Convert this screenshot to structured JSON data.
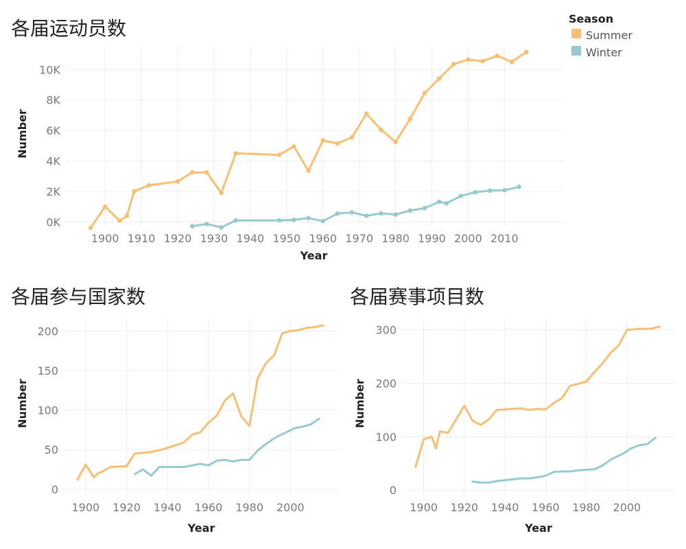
{
  "colors": {
    "summer": "#f8bf72",
    "winter": "#97cbcb"
  },
  "legend": {
    "title": "Season",
    "entries": [
      {
        "label": "Summer",
        "color": "#f8bf72"
      },
      {
        "label": "Winter",
        "color": "#97cbcb"
      }
    ]
  },
  "chart_data": [
    {
      "id": "athletes",
      "type": "line",
      "title": "各届运动员数",
      "xlabel": "Year",
      "ylabel": "Number",
      "xlim": [
        1889,
        2026
      ],
      "ylim": [
        -300,
        11500
      ],
      "xticks": [
        1900,
        1910,
        1920,
        1930,
        1940,
        1950,
        1960,
        1970,
        1980,
        1990,
        2000,
        2010
      ],
      "xtick_labels": [
        "1900",
        "1910",
        "1920",
        "1930",
        "1940",
        "1950",
        "1960",
        "1970",
        "1980",
        "1990",
        "2000",
        "2010"
      ],
      "yticks": [
        0,
        2000,
        4000,
        6000,
        8000,
        10000
      ],
      "ytick_labels": [
        "0K",
        "2K",
        "4K",
        "6K",
        "8K",
        "10K"
      ],
      "markers": true,
      "series": [
        {
          "name": "Summer",
          "x": [
            1896,
            1900,
            1904,
            1906,
            1908,
            1912,
            1920,
            1924,
            1928,
            1932,
            1936,
            1948,
            1952,
            1956,
            1960,
            1964,
            1968,
            1972,
            1976,
            1980,
            1984,
            1988,
            1992,
            1996,
            2000,
            2004,
            2008,
            2012,
            2016
          ],
          "values": [
            -400,
            1000,
            80,
            400,
            2000,
            2400,
            2650,
            3250,
            3250,
            1900,
            4500,
            4400,
            4950,
            3350,
            5350,
            5150,
            5550,
            7100,
            6050,
            5250,
            6750,
            8450,
            9400,
            10350,
            10650,
            10550,
            10900,
            10500,
            11150
          ]
        },
        {
          "name": "Winter",
          "x": [
            1924,
            1928,
            1932,
            1936,
            1948,
            1952,
            1956,
            1960,
            1964,
            1968,
            1972,
            1976,
            1980,
            1984,
            1988,
            1992,
            1994,
            1998,
            2002,
            2006,
            2010,
            2014
          ],
          "values": [
            -280,
            -140,
            -360,
            100,
            100,
            130,
            250,
            50,
            540,
            620,
            400,
            560,
            480,
            740,
            900,
            1320,
            1220,
            1700,
            1950,
            2050,
            2080,
            2300
          ]
        }
      ]
    },
    {
      "id": "countries",
      "type": "line",
      "title": "各届参与国家数",
      "xlabel": "Year",
      "ylabel": "Number",
      "xlim": [
        1889,
        2024
      ],
      "ylim": [
        -8,
        215
      ],
      "xticks": [
        1900,
        1920,
        1940,
        1960,
        1980,
        2000
      ],
      "xtick_labels": [
        "1900",
        "1920",
        "1940",
        "1960",
        "1980",
        "2000"
      ],
      "yticks": [
        0,
        50,
        100,
        150,
        200
      ],
      "ytick_labels": [
        "0",
        "50",
        "100",
        "150",
        "200"
      ],
      "markers": false,
      "series": [
        {
          "name": "Summer",
          "x": [
            1896,
            1900,
            1904,
            1906,
            1908,
            1912,
            1920,
            1924,
            1928,
            1932,
            1936,
            1948,
            1952,
            1956,
            1960,
            1964,
            1968,
            1972,
            1976,
            1980,
            1984,
            1988,
            1992,
            1996,
            2000,
            2004,
            2008,
            2012,
            2016
          ],
          "values": [
            12,
            31,
            15,
            20,
            22,
            28,
            29,
            45,
            46,
            47,
            49,
            59,
            69,
            72,
            84,
            93,
            112,
            121,
            92,
            80,
            140,
            159,
            169,
            197,
            200,
            201,
            204,
            205,
            207
          ]
        },
        {
          "name": "Winter",
          "x": [
            1924,
            1928,
            1932,
            1936,
            1948,
            1952,
            1956,
            1960,
            1964,
            1968,
            1972,
            1976,
            1980,
            1984,
            1988,
            1992,
            1994,
            1998,
            2002,
            2006,
            2010,
            2014
          ],
          "values": [
            19,
            25,
            17,
            28,
            28,
            30,
            32,
            30,
            36,
            37,
            35,
            37,
            37,
            49,
            57,
            64,
            67,
            72,
            77,
            79,
            82,
            89
          ]
        }
      ]
    },
    {
      "id": "events",
      "type": "line",
      "title": "各届赛事项目数",
      "xlabel": "Year",
      "ylabel": "Number",
      "xlim": [
        1889,
        2024
      ],
      "ylim": [
        -10,
        320
      ],
      "xticks": [
        1900,
        1920,
        1940,
        1960,
        1980,
        2000
      ],
      "xtick_labels": [
        "1900",
        "1920",
        "1940",
        "1960",
        "1980",
        "2000"
      ],
      "yticks": [
        0,
        100,
        200,
        300
      ],
      "ytick_labels": [
        "0",
        "100",
        "200",
        "300"
      ],
      "markers": false,
      "series": [
        {
          "name": "Summer",
          "x": [
            1896,
            1900,
            1904,
            1906,
            1908,
            1912,
            1920,
            1924,
            1928,
            1932,
            1936,
            1948,
            1952,
            1956,
            1960,
            1964,
            1968,
            1972,
            1976,
            1980,
            1984,
            1988,
            1992,
            1996,
            2000,
            2004,
            2008,
            2012,
            2016
          ],
          "values": [
            43,
            95,
            100,
            78,
            110,
            107,
            158,
            130,
            122,
            132,
            150,
            153,
            150,
            152,
            151,
            163,
            172,
            195,
            199,
            203,
            221,
            237,
            257,
            271,
            300,
            301,
            302,
            302,
            306
          ]
        },
        {
          "name": "Winter",
          "x": [
            1924,
            1928,
            1932,
            1936,
            1948,
            1952,
            1956,
            1960,
            1964,
            1968,
            1972,
            1976,
            1980,
            1984,
            1988,
            1992,
            1994,
            1998,
            2002,
            2006,
            2010,
            2014
          ],
          "values": [
            16,
            14,
            14,
            17,
            22,
            22,
            24,
            27,
            34,
            35,
            35,
            37,
            38,
            39,
            46,
            57,
            61,
            68,
            78,
            84,
            86,
            98
          ]
        }
      ]
    }
  ]
}
